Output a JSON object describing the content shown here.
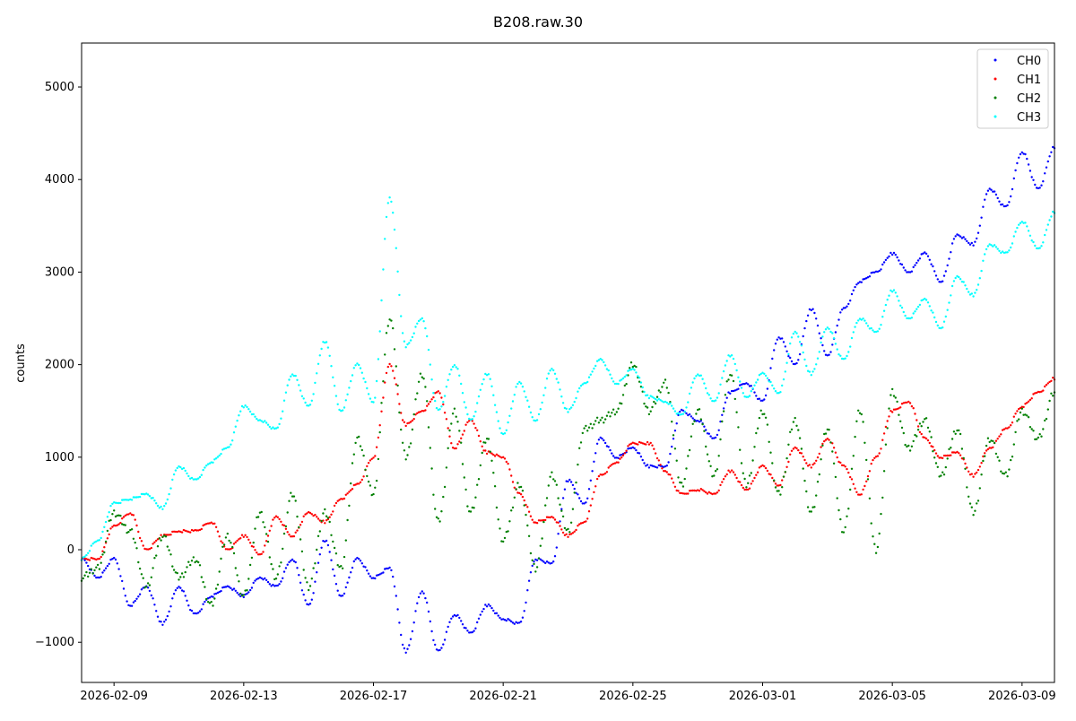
{
  "chart_data": {
    "type": "scatter",
    "title": "B208.raw.30",
    "xlabel": "",
    "ylabel": "counts",
    "xlim": [
      "2026-02-08 00:00",
      "2026-03-10 00:00"
    ],
    "ylim": [
      -1434,
      5475
    ],
    "grid": false,
    "legend_placement": "top-right",
    "yticks": [
      -1000,
      0,
      1000,
      2000,
      3000,
      4000,
      5000
    ],
    "ytick_labels": [
      "−1000",
      "0",
      "1000",
      "2000",
      "3000",
      "4000",
      "5000"
    ],
    "xticks": [
      "2026-02-09",
      "2026-02-13",
      "2026-02-17",
      "2026-02-21",
      "2026-02-25",
      "2026-03-01",
      "2026-03-05",
      "2026-03-09"
    ],
    "x_start": "2026-02-08 00:00",
    "x_step_hours": 12,
    "series": [
      {
        "name": "CH0",
        "color": "#0000ff",
        "values": [
          -100,
          -300,
          -100,
          -600,
          -400,
          -800,
          -400,
          -700,
          -500,
          -400,
          -500,
          -300,
          -400,
          -100,
          -600,
          100,
          -500,
          -100,
          -300,
          -200,
          -1100,
          -450,
          -1100,
          -700,
          -900,
          -600,
          -750,
          -800,
          -100,
          -150,
          750,
          500,
          1200,
          1000,
          1100,
          900,
          900,
          1500,
          1400,
          1200,
          1700,
          1800,
          1600,
          2300,
          2000,
          2600,
          2100,
          2600,
          2900,
          3000,
          3200,
          3000,
          3200,
          2900,
          3400,
          3300,
          3900,
          3700,
          4300,
          3900,
          4350
        ]
      },
      {
        "name": "CH1",
        "color": "#ff0000",
        "values": [
          -100,
          -100,
          250,
          400,
          0,
          150,
          200,
          200,
          300,
          0,
          150,
          -50,
          350,
          150,
          400,
          300,
          550,
          700,
          1000,
          2000,
          1350,
          1500,
          1700,
          1100,
          1400,
          1050,
          1000,
          600,
          300,
          350,
          150,
          300,
          800,
          950,
          1150,
          1150,
          850,
          600,
          650,
          600,
          850,
          650,
          900,
          700,
          1100,
          900,
          1200,
          900,
          600,
          1000,
          1500,
          1600,
          1200,
          1000,
          1050,
          800,
          1100,
          1300,
          1550,
          1700,
          1850
        ]
      },
      {
        "name": "CH2",
        "color": "#008000",
        "values": [
          -300,
          -200,
          400,
          200,
          -400,
          150,
          -300,
          -100,
          -600,
          150,
          -500,
          400,
          -300,
          600,
          -400,
          400,
          -200,
          1200,
          600,
          2500,
          1000,
          1900,
          300,
          1500,
          400,
          1200,
          100,
          700,
          -200,
          800,
          200,
          1300,
          1400,
          1500,
          2000,
          1500,
          1800,
          700,
          1500,
          800,
          1900,
          700,
          1500,
          600,
          1400,
          400,
          1300,
          200,
          1500,
          0,
          1700,
          1100,
          1400,
          800,
          1300,
          400,
          1200,
          800,
          1500,
          1200,
          1700
        ]
      },
      {
        "name": "CH3",
        "color": "#00ffff",
        "values": [
          -100,
          100,
          500,
          550,
          600,
          450,
          900,
          750,
          950,
          1100,
          1550,
          1400,
          1300,
          1900,
          1550,
          2250,
          1500,
          2000,
          1600,
          3800,
          2200,
          2500,
          1500,
          2000,
          1400,
          1900,
          1250,
          1800,
          1400,
          1950,
          1500,
          1800,
          2050,
          1800,
          1950,
          1650,
          1600,
          1450,
          1900,
          1600,
          2100,
          1650,
          1900,
          1700,
          2350,
          1900,
          2400,
          2050,
          2500,
          2350,
          2800,
          2500,
          2700,
          2400,
          2950,
          2750,
          3300,
          3200,
          3550,
          3250,
          3650
        ]
      }
    ]
  }
}
